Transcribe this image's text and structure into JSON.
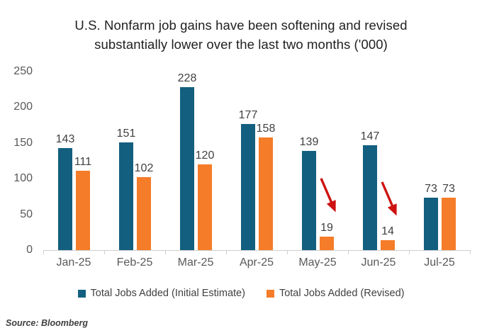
{
  "title": {
    "line1": "U.S. Nonfarm job gains have been softening and revised",
    "line2": "substantially lower over the last two months ('000)"
  },
  "source": "Source: Bloomberg",
  "colors": {
    "initial": "#135F7F",
    "revised": "#F57C28",
    "arrow": "#CE1212",
    "axis_line": "#CFCFCF",
    "title_text": "#1F1F1F",
    "label_text": "#404040",
    "axis_text": "#595959"
  },
  "legend": [
    {
      "label": "Total Jobs Added (Initial Estimate)",
      "color": "#135F7F"
    },
    {
      "label": "Total Jobs Added (Revised)",
      "color": "#F57C28"
    }
  ],
  "chart_data": {
    "type": "bar",
    "title": "U.S. Nonfarm job gains have been softening and revised substantially lower over the last two months ('000)",
    "categories": [
      "Jan-25",
      "Feb-25",
      "Mar-25",
      "Apr-25",
      "May-25",
      "Jun-25",
      "Jul-25"
    ],
    "series": [
      {
        "name": "Total Jobs Added (Initial Estimate)",
        "color": "#135F7F",
        "values": [
          143,
          151,
          228,
          177,
          139,
          147,
          73
        ]
      },
      {
        "name": "Total Jobs Added (Revised)",
        "color": "#F57C28",
        "values": [
          111,
          102,
          120,
          158,
          19,
          14,
          73
        ]
      }
    ],
    "xlabel": "",
    "ylabel": "",
    "ylim": [
      0,
      250
    ],
    "yticks": [
      0,
      50,
      100,
      150,
      200,
      250
    ],
    "grid": false,
    "data_labels": true,
    "legend_position": "bottom",
    "annotations": [
      {
        "type": "arrow",
        "category": "May-25",
        "series": "Total Jobs Added (Revised)",
        "direction": "down-right"
      },
      {
        "type": "arrow",
        "category": "Jun-25",
        "series": "Total Jobs Added (Revised)",
        "direction": "down-right"
      }
    ]
  }
}
